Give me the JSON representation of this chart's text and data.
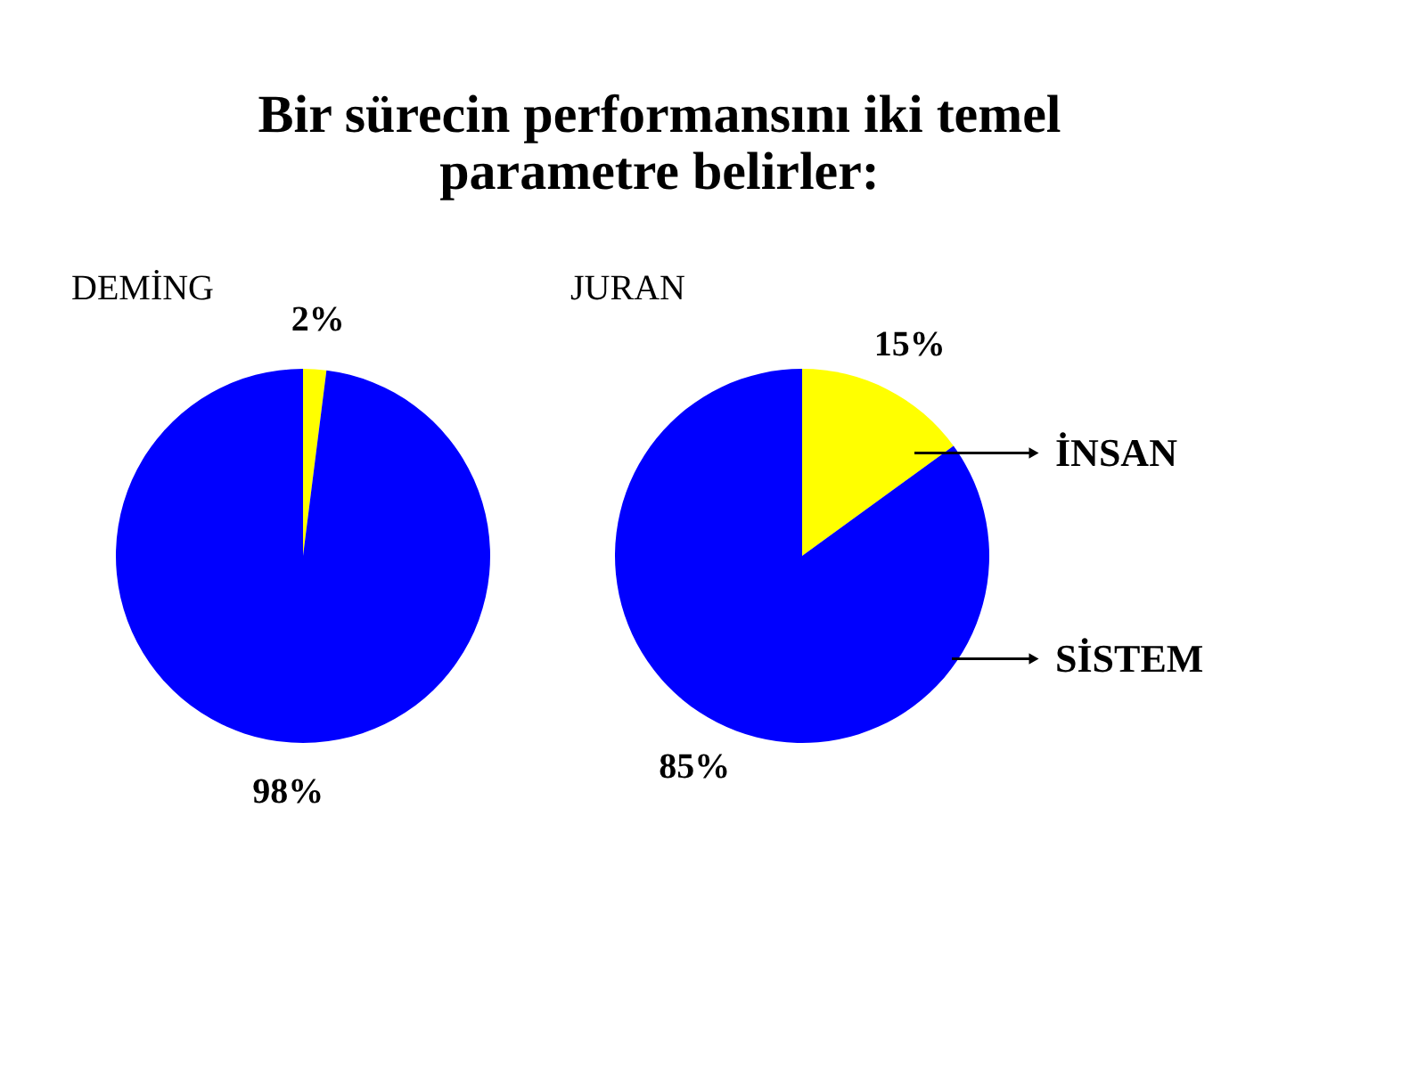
{
  "chart_data": [
    {
      "type": "pie",
      "title": "Bir sürecin performansını iki temel parametre belirler:",
      "subtitle": "DEMİNG",
      "categories": [
        null,
        null
      ],
      "values": [
        2,
        98
      ],
      "colors": [
        "#ffff00",
        "#0000ff"
      ],
      "value_labels": [
        "2%",
        "98%"
      ],
      "legend": false
    },
    {
      "type": "pie",
      "subtitle": "JURAN",
      "categories": [
        "İNSAN",
        "SİSTEM"
      ],
      "values": [
        15,
        85
      ],
      "colors": [
        "#ffff00",
        "#0000ff"
      ],
      "value_labels": [
        "15%",
        "85%"
      ],
      "legend": false
    }
  ]
}
